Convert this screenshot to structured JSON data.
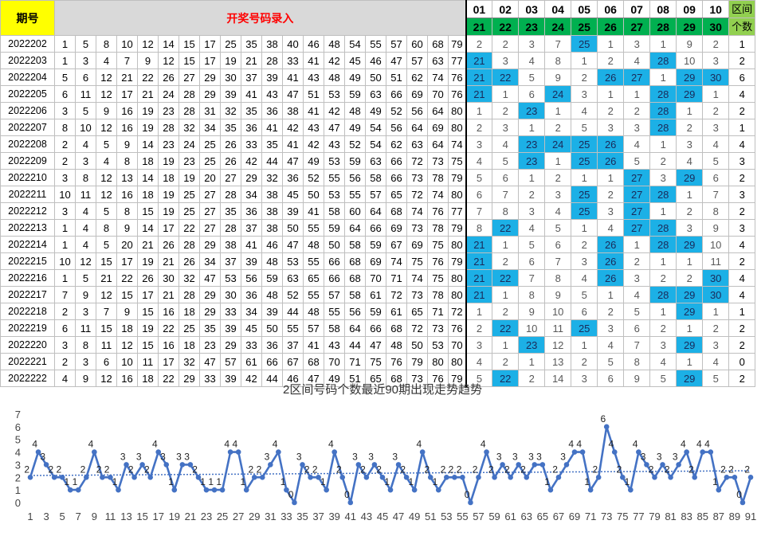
{
  "header": {
    "period_label": "期号",
    "input_label": "开奖号码录入",
    "zone_top": [
      "01",
      "02",
      "03",
      "04",
      "05",
      "06",
      "07",
      "08",
      "09",
      "10"
    ],
    "zone_bottom": [
      "21",
      "22",
      "23",
      "24",
      "25",
      "26",
      "27",
      "28",
      "29",
      "30"
    ],
    "count_label_1": "区间",
    "count_label_2": "个数"
  },
  "rows": [
    {
      "period": "2022202",
      "nums": [
        "1",
        "5",
        "8",
        "10",
        "12",
        "14",
        "15",
        "17",
        "25",
        "35",
        "38",
        "40",
        "46",
        "48",
        "54",
        "55",
        "57",
        "60",
        "68",
        "79"
      ],
      "gaps": [
        "2",
        "2",
        "3",
        "7",
        "25",
        "1",
        "3",
        "1",
        "9",
        "2"
      ],
      "hits": [
        false,
        false,
        false,
        false,
        true,
        false,
        false,
        false,
        false,
        false
      ],
      "count": "1"
    },
    {
      "period": "2022203",
      "nums": [
        "1",
        "3",
        "4",
        "7",
        "9",
        "12",
        "15",
        "17",
        "19",
        "21",
        "28",
        "33",
        "41",
        "42",
        "45",
        "46",
        "47",
        "57",
        "63",
        "77"
      ],
      "gaps": [
        "21",
        "3",
        "4",
        "8",
        "1",
        "2",
        "4",
        "28",
        "10",
        "3"
      ],
      "hits": [
        true,
        false,
        false,
        false,
        false,
        false,
        false,
        true,
        false,
        false
      ],
      "count": "2"
    },
    {
      "period": "2022204",
      "nums": [
        "5",
        "6",
        "12",
        "21",
        "22",
        "26",
        "27",
        "29",
        "30",
        "37",
        "39",
        "41",
        "43",
        "48",
        "49",
        "50",
        "51",
        "62",
        "74",
        "76"
      ],
      "gaps": [
        "21",
        "22",
        "5",
        "9",
        "2",
        "26",
        "27",
        "1",
        "29",
        "30"
      ],
      "hits": [
        true,
        true,
        false,
        false,
        false,
        true,
        true,
        false,
        true,
        true
      ],
      "count": "6"
    },
    {
      "period": "2022205",
      "nums": [
        "6",
        "11",
        "12",
        "17",
        "21",
        "24",
        "28",
        "29",
        "39",
        "41",
        "43",
        "47",
        "51",
        "53",
        "59",
        "63",
        "66",
        "69",
        "70",
        "76"
      ],
      "gaps": [
        "21",
        "1",
        "6",
        "24",
        "3",
        "1",
        "1",
        "28",
        "29",
        "1"
      ],
      "hits": [
        true,
        false,
        false,
        true,
        false,
        false,
        false,
        true,
        true,
        false
      ],
      "count": "4"
    },
    {
      "period": "2022206",
      "nums": [
        "3",
        "5",
        "9",
        "16",
        "19",
        "23",
        "28",
        "31",
        "32",
        "35",
        "36",
        "38",
        "41",
        "42",
        "48",
        "49",
        "52",
        "56",
        "64",
        "80"
      ],
      "gaps": [
        "1",
        "2",
        "23",
        "1",
        "4",
        "2",
        "2",
        "28",
        "1",
        "2"
      ],
      "hits": [
        false,
        false,
        true,
        false,
        false,
        false,
        false,
        true,
        false,
        false
      ],
      "count": "2"
    },
    {
      "period": "2022207",
      "nums": [
        "8",
        "10",
        "12",
        "16",
        "19",
        "28",
        "32",
        "34",
        "35",
        "36",
        "41",
        "42",
        "43",
        "47",
        "49",
        "54",
        "56",
        "64",
        "69",
        "80"
      ],
      "gaps": [
        "2",
        "3",
        "1",
        "2",
        "5",
        "3",
        "3",
        "28",
        "2",
        "3"
      ],
      "hits": [
        false,
        false,
        false,
        false,
        false,
        false,
        false,
        true,
        false,
        false
      ],
      "count": "1"
    },
    {
      "period": "2022208",
      "nums": [
        "2",
        "4",
        "5",
        "9",
        "14",
        "23",
        "24",
        "25",
        "26",
        "33",
        "35",
        "41",
        "42",
        "43",
        "52",
        "54",
        "62",
        "63",
        "64",
        "74"
      ],
      "gaps": [
        "3",
        "4",
        "23",
        "24",
        "25",
        "26",
        "4",
        "1",
        "3",
        "4"
      ],
      "hits": [
        false,
        false,
        true,
        true,
        true,
        true,
        false,
        false,
        false,
        false
      ],
      "count": "4"
    },
    {
      "period": "2022209",
      "nums": [
        "2",
        "3",
        "4",
        "8",
        "18",
        "19",
        "23",
        "25",
        "26",
        "42",
        "44",
        "47",
        "49",
        "53",
        "59",
        "63",
        "66",
        "72",
        "73",
        "75"
      ],
      "gaps": [
        "4",
        "5",
        "23",
        "1",
        "25",
        "26",
        "5",
        "2",
        "4",
        "5"
      ],
      "hits": [
        false,
        false,
        true,
        false,
        true,
        true,
        false,
        false,
        false,
        false
      ],
      "count": "3"
    },
    {
      "period": "2022210",
      "nums": [
        "3",
        "8",
        "12",
        "13",
        "14",
        "18",
        "19",
        "20",
        "27",
        "29",
        "32",
        "36",
        "52",
        "55",
        "56",
        "58",
        "66",
        "73",
        "78",
        "79"
      ],
      "gaps": [
        "5",
        "6",
        "1",
        "2",
        "1",
        "1",
        "27",
        "3",
        "29",
        "6"
      ],
      "hits": [
        false,
        false,
        false,
        false,
        false,
        false,
        true,
        false,
        true,
        false
      ],
      "count": "2"
    },
    {
      "period": "2022211",
      "nums": [
        "10",
        "11",
        "12",
        "16",
        "18",
        "19",
        "25",
        "27",
        "28",
        "34",
        "38",
        "45",
        "50",
        "53",
        "55",
        "57",
        "65",
        "72",
        "74",
        "80"
      ],
      "gaps": [
        "6",
        "7",
        "2",
        "3",
        "25",
        "2",
        "27",
        "28",
        "1",
        "7"
      ],
      "hits": [
        false,
        false,
        false,
        false,
        true,
        false,
        true,
        true,
        false,
        false
      ],
      "count": "3"
    },
    {
      "period": "2022212",
      "nums": [
        "3",
        "4",
        "5",
        "8",
        "15",
        "19",
        "25",
        "27",
        "35",
        "36",
        "38",
        "39",
        "41",
        "58",
        "60",
        "64",
        "68",
        "74",
        "76",
        "77"
      ],
      "gaps": [
        "7",
        "8",
        "3",
        "4",
        "25",
        "3",
        "27",
        "1",
        "2",
        "8"
      ],
      "hits": [
        false,
        false,
        false,
        false,
        true,
        false,
        true,
        false,
        false,
        false
      ],
      "count": "2"
    },
    {
      "period": "2022213",
      "nums": [
        "1",
        "4",
        "8",
        "9",
        "14",
        "17",
        "22",
        "27",
        "28",
        "37",
        "38",
        "50",
        "55",
        "59",
        "64",
        "66",
        "69",
        "73",
        "78",
        "79"
      ],
      "gaps": [
        "8",
        "22",
        "4",
        "5",
        "1",
        "4",
        "27",
        "28",
        "3",
        "9"
      ],
      "hits": [
        false,
        true,
        false,
        false,
        false,
        false,
        true,
        true,
        false,
        false
      ],
      "count": "3"
    },
    {
      "period": "2022214",
      "nums": [
        "1",
        "4",
        "5",
        "20",
        "21",
        "26",
        "28",
        "29",
        "38",
        "41",
        "46",
        "47",
        "48",
        "50",
        "58",
        "59",
        "67",
        "69",
        "75",
        "80"
      ],
      "gaps": [
        "21",
        "1",
        "5",
        "6",
        "2",
        "26",
        "1",
        "28",
        "29",
        "10"
      ],
      "hits": [
        true,
        false,
        false,
        false,
        false,
        true,
        false,
        true,
        true,
        false
      ],
      "count": "4"
    },
    {
      "period": "2022215",
      "nums": [
        "10",
        "12",
        "15",
        "17",
        "19",
        "21",
        "26",
        "34",
        "37",
        "39",
        "48",
        "53",
        "55",
        "66",
        "68",
        "69",
        "74",
        "75",
        "76",
        "79"
      ],
      "gaps": [
        "21",
        "2",
        "6",
        "7",
        "3",
        "26",
        "2",
        "1",
        "1",
        "11"
      ],
      "hits": [
        true,
        false,
        false,
        false,
        false,
        true,
        false,
        false,
        false,
        false
      ],
      "count": "2"
    },
    {
      "period": "2022216",
      "nums": [
        "1",
        "5",
        "21",
        "22",
        "26",
        "30",
        "32",
        "47",
        "53",
        "56",
        "59",
        "63",
        "65",
        "66",
        "68",
        "70",
        "71",
        "74",
        "75",
        "80"
      ],
      "gaps": [
        "21",
        "22",
        "7",
        "8",
        "4",
        "26",
        "3",
        "2",
        "2",
        "30"
      ],
      "hits": [
        true,
        true,
        false,
        false,
        false,
        true,
        false,
        false,
        false,
        true
      ],
      "count": "4"
    },
    {
      "period": "2022217",
      "nums": [
        "7",
        "9",
        "12",
        "15",
        "17",
        "21",
        "28",
        "29",
        "30",
        "36",
        "48",
        "52",
        "55",
        "57",
        "58",
        "61",
        "72",
        "73",
        "78",
        "80"
      ],
      "gaps": [
        "21",
        "1",
        "8",
        "9",
        "5",
        "1",
        "4",
        "28",
        "29",
        "30"
      ],
      "hits": [
        true,
        false,
        false,
        false,
        false,
        false,
        false,
        true,
        true,
        true
      ],
      "count": "4"
    },
    {
      "period": "2022218",
      "nums": [
        "2",
        "3",
        "7",
        "9",
        "15",
        "16",
        "18",
        "29",
        "33",
        "34",
        "39",
        "44",
        "48",
        "55",
        "56",
        "59",
        "61",
        "65",
        "71",
        "72"
      ],
      "gaps": [
        "1",
        "2",
        "9",
        "10",
        "6",
        "2",
        "5",
        "1",
        "29",
        "1"
      ],
      "hits": [
        false,
        false,
        false,
        false,
        false,
        false,
        false,
        false,
        true,
        false
      ],
      "count": "1"
    },
    {
      "period": "2022219",
      "nums": [
        "6",
        "11",
        "15",
        "18",
        "19",
        "22",
        "25",
        "35",
        "39",
        "45",
        "50",
        "55",
        "57",
        "58",
        "64",
        "66",
        "68",
        "72",
        "73",
        "76"
      ],
      "gaps": [
        "2",
        "22",
        "10",
        "11",
        "25",
        "3",
        "6",
        "2",
        "1",
        "2"
      ],
      "hits": [
        false,
        true,
        false,
        false,
        true,
        false,
        false,
        false,
        false,
        false
      ],
      "count": "2"
    },
    {
      "period": "2022220",
      "nums": [
        "3",
        "8",
        "11",
        "12",
        "15",
        "16",
        "18",
        "23",
        "29",
        "33",
        "36",
        "37",
        "41",
        "43",
        "44",
        "47",
        "48",
        "50",
        "53",
        "70"
      ],
      "gaps": [
        "3",
        "1",
        "23",
        "12",
        "1",
        "4",
        "7",
        "3",
        "29",
        "3"
      ],
      "hits": [
        false,
        false,
        true,
        false,
        false,
        false,
        false,
        false,
        true,
        false
      ],
      "count": "2"
    },
    {
      "period": "2022221",
      "nums": [
        "2",
        "3",
        "6",
        "10",
        "11",
        "17",
        "32",
        "47",
        "57",
        "61",
        "66",
        "67",
        "68",
        "70",
        "71",
        "75",
        "76",
        "79",
        "80",
        "80"
      ],
      "gaps": [
        "4",
        "2",
        "1",
        "13",
        "2",
        "5",
        "8",
        "4",
        "1",
        "4"
      ],
      "hits": [
        false,
        false,
        false,
        false,
        false,
        false,
        false,
        false,
        false,
        false
      ],
      "count": "0"
    },
    {
      "period": "2022222",
      "nums": [
        "4",
        "9",
        "12",
        "16",
        "18",
        "22",
        "29",
        "33",
        "39",
        "42",
        "44",
        "46",
        "47",
        "49",
        "51",
        "65",
        "68",
        "73",
        "76",
        "79"
      ],
      "gaps": [
        "5",
        "22",
        "2",
        "14",
        "3",
        "6",
        "9",
        "5",
        "29",
        "5"
      ],
      "hits": [
        false,
        true,
        false,
        false,
        false,
        false,
        false,
        false,
        true,
        false
      ],
      "count": "2"
    }
  ],
  "chart_data": {
    "type": "line",
    "title": "2区间号码个数最近90期出现走势趋势",
    "xlabel": "",
    "ylabel": "",
    "ylim": [
      0,
      7
    ],
    "yticks": [
      "0",
      "1",
      "2",
      "3",
      "4",
      "5",
      "6",
      "7"
    ],
    "xticks": [
      "1",
      "3",
      "5",
      "7",
      "9",
      "11",
      "13",
      "15",
      "17",
      "19",
      "21",
      "23",
      "25",
      "27",
      "29",
      "31",
      "33",
      "35",
      "37",
      "39",
      "41",
      "43",
      "45",
      "47",
      "49",
      "51",
      "53",
      "55",
      "57",
      "59",
      "61",
      "63",
      "65",
      "67",
      "69",
      "71",
      "73",
      "75",
      "77",
      "79",
      "81",
      "83",
      "85",
      "87",
      "89",
      "91"
    ],
    "x": [
      1,
      2,
      3,
      4,
      5,
      6,
      7,
      8,
      9,
      10,
      11,
      12,
      13,
      14,
      15,
      16,
      17,
      18,
      19,
      20,
      21,
      22,
      23,
      24,
      25,
      26,
      27,
      28,
      29,
      30,
      31,
      32,
      33,
      34,
      35,
      36,
      37,
      38,
      39,
      40,
      41,
      42,
      43,
      44,
      45,
      46,
      47,
      48,
      49,
      50,
      51,
      52,
      53,
      54,
      55,
      56,
      57,
      58,
      59,
      60,
      61,
      62,
      63,
      64,
      65,
      66,
      67,
      68,
      69,
      70,
      71,
      72,
      73,
      74,
      75,
      76,
      77,
      78,
      79,
      80,
      81,
      82,
      83,
      84,
      85,
      86,
      87,
      88,
      89,
      90,
      91
    ],
    "series": [
      {
        "values": [
          2,
          4,
          3,
          2,
          2,
          1,
          1,
          2,
          4,
          2,
          2,
          1,
          3,
          2,
          3,
          2,
          4,
          3,
          1,
          3,
          3,
          2,
          1,
          1,
          1,
          4,
          4,
          1,
          2,
          2,
          3,
          4,
          1,
          0,
          3,
          2,
          2,
          1,
          4,
          2,
          0,
          3,
          2,
          3,
          2,
          1,
          3,
          2,
          1,
          4,
          2,
          1,
          2,
          2,
          2,
          0,
          2,
          4,
          2,
          3,
          2,
          3,
          2,
          3,
          3,
          1,
          2,
          3,
          4,
          4,
          1,
          2,
          6,
          4,
          2,
          1,
          4,
          3,
          2,
          3,
          2,
          3,
          4,
          2,
          4,
          4,
          1,
          2,
          2,
          0,
          2
        ]
      }
    ],
    "trendline": true,
    "data_labels": true,
    "grid": false,
    "line_color": "#4472c4",
    "trend_color": "#4472c4"
  }
}
